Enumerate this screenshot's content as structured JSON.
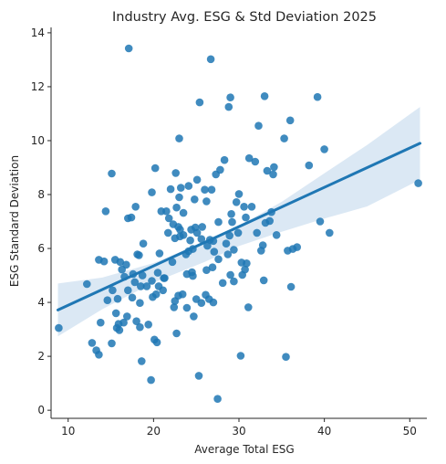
{
  "chart_data": {
    "type": "scatter",
    "title": "Industry Avg. ESG & Std Deviation 2025",
    "xlabel": "Average Total ESG",
    "ylabel": "ESG Standard Deviation",
    "xlim": [
      8,
      52
    ],
    "ylim": [
      -0.3,
      14.2
    ],
    "x_ticks": [
      10,
      20,
      30,
      40,
      50
    ],
    "y_ticks": [
      0,
      2,
      4,
      6,
      8,
      10,
      12,
      14
    ],
    "grid": false,
    "legend": "none",
    "colors": {
      "points": "#1f77b4",
      "line": "#1f77b4",
      "band": "#cfe0f0",
      "axis": "#262626"
    },
    "regression": {
      "x_range": [
        8.8,
        51.2
      ],
      "y_start": 3.72,
      "y_end": 9.9,
      "ci_lower": [
        [
          8.8,
          2.74
        ],
        [
          14,
          3.75
        ],
        [
          20,
          4.74
        ],
        [
          26,
          5.5
        ],
        [
          30,
          6.09
        ],
        [
          35,
          6.62
        ],
        [
          40,
          7.11
        ],
        [
          45,
          7.56
        ],
        [
          51.2,
          8.55
        ]
      ],
      "ci_upper": [
        [
          8.8,
          4.7
        ],
        [
          14,
          4.92
        ],
        [
          20,
          5.46
        ],
        [
          26,
          6.26
        ],
        [
          30,
          6.84
        ],
        [
          35,
          7.73
        ],
        [
          40,
          8.79
        ],
        [
          45,
          9.84
        ],
        [
          51.2,
          11.25
        ]
      ]
    },
    "points": [
      [
        8.9,
        3.05
      ],
      [
        12.2,
        4.68
      ],
      [
        12.8,
        2.5
      ],
      [
        13.3,
        2.22
      ],
      [
        13.6,
        2.06
      ],
      [
        13.6,
        5.58
      ],
      [
        13.8,
        3.25
      ],
      [
        14.2,
        5.52
      ],
      [
        14.4,
        7.38
      ],
      [
        14.6,
        4.08
      ],
      [
        15.1,
        2.48
      ],
      [
        15.1,
        8.78
      ],
      [
        15.2,
        4.45
      ],
      [
        15.5,
        5.58
      ],
      [
        15.6,
        3.6
      ],
      [
        15.7,
        3.05
      ],
      [
        15.8,
        4.13
      ],
      [
        15.9,
        3.2
      ],
      [
        16.0,
        2.97
      ],
      [
        16.1,
        5.5
      ],
      [
        16.3,
        5.22
      ],
      [
        16.5,
        3.25
      ],
      [
        16.6,
        4.95
      ],
      [
        16.8,
        5.4
      ],
      [
        16.9,
        3.48
      ],
      [
        17.0,
        4.45
      ],
      [
        17.0,
        7.12
      ],
      [
        17.1,
        13.42
      ],
      [
        17.4,
        7.15
      ],
      [
        17.5,
        4.18
      ],
      [
        17.6,
        5.05
      ],
      [
        17.8,
        4.75
      ],
      [
        17.9,
        7.55
      ],
      [
        18.0,
        3.3
      ],
      [
        18.1,
        5.78
      ],
      [
        18.3,
        5.75
      ],
      [
        18.4,
        3.08
      ],
      [
        18.4,
        3.98
      ],
      [
        18.5,
        4.6
      ],
      [
        18.6,
        1.82
      ],
      [
        18.7,
        5.0
      ],
      [
        18.8,
        6.18
      ],
      [
        19.2,
        4.6
      ],
      [
        19.4,
        3.18
      ],
      [
        19.7,
        1.12
      ],
      [
        19.8,
        8.08
      ],
      [
        19.8,
        4.8
      ],
      [
        19.9,
        4.2
      ],
      [
        20.1,
        2.62
      ],
      [
        20.2,
        8.98
      ],
      [
        20.3,
        4.3
      ],
      [
        20.4,
        2.52
      ],
      [
        20.5,
        5.1
      ],
      [
        20.6,
        4.6
      ],
      [
        20.7,
        5.82
      ],
      [
        20.9,
        7.38
      ],
      [
        21.1,
        4.45
      ],
      [
        21.2,
        4.9
      ],
      [
        21.3,
        4.9
      ],
      [
        21.5,
        7.38
      ],
      [
        21.7,
        6.58
      ],
      [
        21.8,
        7.12
      ],
      [
        22.0,
        8.2
      ],
      [
        22.2,
        5.5
      ],
      [
        22.3,
        6.9
      ],
      [
        22.4,
        3.82
      ],
      [
        22.5,
        4.05
      ],
      [
        22.5,
        6.38
      ],
      [
        22.6,
        8.8
      ],
      [
        22.7,
        2.85
      ],
      [
        22.7,
        7.52
      ],
      [
        22.9,
        4.25
      ],
      [
        22.9,
        6.8
      ],
      [
        23.0,
        7.9
      ],
      [
        23.0,
        10.08
      ],
      [
        23.1,
        6.7
      ],
      [
        23.1,
        6.45
      ],
      [
        23.2,
        8.25
      ],
      [
        23.4,
        4.3
      ],
      [
        23.5,
        6.5
      ],
      [
        23.5,
        7.32
      ],
      [
        23.8,
        5.78
      ],
      [
        23.9,
        3.8
      ],
      [
        23.9,
        5.05
      ],
      [
        24.1,
        8.32
      ],
      [
        24.1,
        5.9
      ],
      [
        24.3,
        6.3
      ],
      [
        24.4,
        6.7
      ],
      [
        24.5,
        5.12
      ],
      [
        24.6,
        5.98
      ],
      [
        24.6,
        4.98
      ],
      [
        24.7,
        3.48
      ],
      [
        24.8,
        7.82
      ],
      [
        24.9,
        6.78
      ],
      [
        25.0,
        4.12
      ],
      [
        25.1,
        8.55
      ],
      [
        25.1,
        6.58
      ],
      [
        25.3,
        1.28
      ],
      [
        25.4,
        11.42
      ],
      [
        25.6,
        6.35
      ],
      [
        25.6,
        3.98
      ],
      [
        25.7,
        6.8
      ],
      [
        26.0,
        8.18
      ],
      [
        26.1,
        4.28
      ],
      [
        26.2,
        5.2
      ],
      [
        26.2,
        7.75
      ],
      [
        26.3,
        6.1
      ],
      [
        26.5,
        4.12
      ],
      [
        26.6,
        6.32
      ],
      [
        26.7,
        13.02
      ],
      [
        26.8,
        8.18
      ],
      [
        26.9,
        5.3
      ],
      [
        27.0,
        6.28
      ],
      [
        27.0,
        4.0
      ],
      [
        27.1,
        5.88
      ],
      [
        27.3,
        8.75
      ],
      [
        27.5,
        0.42
      ],
      [
        27.6,
        6.98
      ],
      [
        27.6,
        5.6
      ],
      [
        27.8,
        8.92
      ],
      [
        28.1,
        4.72
      ],
      [
        28.3,
        9.28
      ],
      [
        28.5,
        6.18
      ],
      [
        28.7,
        5.78
      ],
      [
        28.8,
        11.25
      ],
      [
        28.9,
        6.48
      ],
      [
        29.0,
        11.6
      ],
      [
        29.0,
        5.02
      ],
      [
        29.1,
        7.28
      ],
      [
        29.2,
        6.98
      ],
      [
        29.4,
        5.95
      ],
      [
        29.4,
        4.78
      ],
      [
        29.7,
        7.72
      ],
      [
        29.9,
        6.58
      ],
      [
        30.0,
        8.02
      ],
      [
        30.2,
        2.02
      ],
      [
        30.3,
        5.48
      ],
      [
        30.4,
        5.02
      ],
      [
        30.6,
        7.55
      ],
      [
        30.7,
        5.22
      ],
      [
        30.8,
        7.15
      ],
      [
        30.9,
        5.45
      ],
      [
        31.1,
        3.82
      ],
      [
        31.2,
        9.35
      ],
      [
        31.5,
        7.55
      ],
      [
        31.9,
        9.22
      ],
      [
        32.1,
        6.58
      ],
      [
        32.3,
        10.55
      ],
      [
        32.6,
        5.92
      ],
      [
        32.8,
        6.12
      ],
      [
        32.9,
        4.82
      ],
      [
        33.0,
        11.65
      ],
      [
        33.1,
        6.95
      ],
      [
        33.3,
        8.88
      ],
      [
        33.6,
        7.02
      ],
      [
        33.8,
        7.35
      ],
      [
        34.0,
        8.75
      ],
      [
        34.1,
        9.02
      ],
      [
        34.4,
        6.5
      ],
      [
        35.3,
        10.08
      ],
      [
        35.5,
        1.98
      ],
      [
        35.7,
        5.92
      ],
      [
        36.0,
        10.75
      ],
      [
        36.1,
        4.58
      ],
      [
        36.3,
        5.98
      ],
      [
        36.8,
        6.05
      ],
      [
        38.2,
        9.08
      ],
      [
        39.2,
        11.62
      ],
      [
        39.5,
        7.0
      ],
      [
        40.0,
        9.68
      ],
      [
        40.6,
        6.58
      ],
      [
        51.0,
        8.42
      ]
    ]
  }
}
